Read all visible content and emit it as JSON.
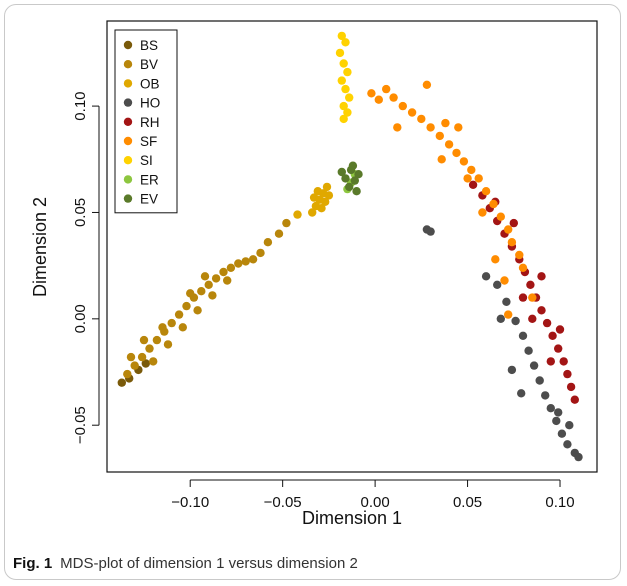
{
  "chart_data": {
    "type": "scatter",
    "xlabel": "Dimension 1",
    "ylabel": "Dimension 2",
    "xlim": [
      -0.145,
      0.12
    ],
    "ylim": [
      -0.072,
      0.14
    ],
    "xticks": [
      -0.1,
      -0.05,
      0.0,
      0.05,
      0.1
    ],
    "xtick_labels": [
      "−0.10",
      "−0.05",
      "0.00",
      "0.05",
      "0.10"
    ],
    "yticks": [
      -0.05,
      0.0,
      0.05,
      0.1
    ],
    "ytick_labels": [
      "−0.05",
      "0.00",
      "0.05",
      "0.10"
    ],
    "grid": false,
    "legend_position": "top-left",
    "series": [
      {
        "name": "BS",
        "color": "#7a5a0a",
        "points": [
          [
            -0.137,
            -0.03
          ],
          [
            -0.133,
            -0.028
          ],
          [
            -0.128,
            -0.024
          ],
          [
            -0.124,
            -0.021
          ]
        ]
      },
      {
        "name": "BV",
        "color": "#b8860b",
        "points": [
          [
            -0.134,
            -0.026
          ],
          [
            -0.13,
            -0.022
          ],
          [
            -0.126,
            -0.018
          ],
          [
            -0.122,
            -0.014
          ],
          [
            -0.118,
            -0.01
          ],
          [
            -0.114,
            -0.006
          ],
          [
            -0.11,
            -0.002
          ],
          [
            -0.106,
            0.002
          ],
          [
            -0.102,
            0.006
          ],
          [
            -0.098,
            0.01
          ],
          [
            -0.094,
            0.013
          ],
          [
            -0.09,
            0.016
          ],
          [
            -0.086,
            0.019
          ],
          [
            -0.082,
            0.022
          ],
          [
            -0.078,
            0.024
          ],
          [
            -0.074,
            0.026
          ],
          [
            -0.07,
            0.027
          ],
          [
            -0.066,
            0.028
          ],
          [
            -0.062,
            0.031
          ],
          [
            -0.058,
            0.036
          ],
          [
            -0.052,
            0.04
          ],
          [
            -0.048,
            0.045
          ],
          [
            -0.12,
            -0.02
          ],
          [
            -0.112,
            -0.012
          ],
          [
            -0.104,
            -0.004
          ],
          [
            -0.096,
            0.004
          ],
          [
            -0.088,
            0.011
          ],
          [
            -0.08,
            0.018
          ],
          [
            -0.125,
            -0.01
          ],
          [
            -0.115,
            -0.004
          ],
          [
            -0.1,
            0.012
          ],
          [
            -0.092,
            0.02
          ],
          [
            -0.132,
            -0.018
          ]
        ]
      },
      {
        "name": "OB",
        "color": "#e0a800",
        "points": [
          [
            -0.034,
            0.05
          ],
          [
            -0.032,
            0.053
          ],
          [
            -0.03,
            0.056
          ],
          [
            -0.028,
            0.059
          ],
          [
            -0.026,
            0.062
          ],
          [
            -0.033,
            0.057
          ],
          [
            -0.029,
            0.052
          ],
          [
            -0.025,
            0.058
          ],
          [
            -0.031,
            0.06
          ],
          [
            -0.027,
            0.055
          ],
          [
            -0.042,
            0.049
          ]
        ]
      },
      {
        "name": "HO",
        "color": "#4d4d4d",
        "points": [
          [
            0.028,
            0.042
          ],
          [
            0.03,
            0.041
          ],
          [
            0.06,
            0.02
          ],
          [
            0.066,
            0.016
          ],
          [
            0.071,
            0.008
          ],
          [
            0.076,
            -0.001
          ],
          [
            0.08,
            -0.008
          ],
          [
            0.083,
            -0.015
          ],
          [
            0.086,
            -0.022
          ],
          [
            0.089,
            -0.029
          ],
          [
            0.092,
            -0.036
          ],
          [
            0.095,
            -0.042
          ],
          [
            0.098,
            -0.048
          ],
          [
            0.101,
            -0.054
          ],
          [
            0.104,
            -0.059
          ],
          [
            0.108,
            -0.063
          ],
          [
            0.11,
            -0.065
          ],
          [
            0.074,
            -0.024
          ],
          [
            0.079,
            -0.035
          ],
          [
            0.068,
            0.0
          ],
          [
            0.105,
            -0.05
          ],
          [
            0.099,
            -0.044
          ]
        ]
      },
      {
        "name": "RH",
        "color": "#a31515",
        "points": [
          [
            0.053,
            0.063
          ],
          [
            0.058,
            0.058
          ],
          [
            0.062,
            0.052
          ],
          [
            0.066,
            0.046
          ],
          [
            0.07,
            0.04
          ],
          [
            0.074,
            0.034
          ],
          [
            0.078,
            0.028
          ],
          [
            0.081,
            0.022
          ],
          [
            0.084,
            0.016
          ],
          [
            0.087,
            0.01
          ],
          [
            0.09,
            0.004
          ],
          [
            0.093,
            -0.002
          ],
          [
            0.096,
            -0.008
          ],
          [
            0.099,
            -0.014
          ],
          [
            0.102,
            -0.02
          ],
          [
            0.104,
            -0.026
          ],
          [
            0.106,
            -0.032
          ],
          [
            0.108,
            -0.038
          ],
          [
            0.085,
            0.0
          ],
          [
            0.08,
            0.01
          ],
          [
            0.095,
            -0.02
          ],
          [
            0.1,
            -0.005
          ],
          [
            0.09,
            0.02
          ],
          [
            0.075,
            0.045
          ],
          [
            0.065,
            0.055
          ]
        ]
      },
      {
        "name": "SF",
        "color": "#ff8c00",
        "points": [
          [
            -0.002,
            0.106
          ],
          [
            0.002,
            0.103
          ],
          [
            0.006,
            0.108
          ],
          [
            0.01,
            0.104
          ],
          [
            0.015,
            0.1
          ],
          [
            0.02,
            0.097
          ],
          [
            0.025,
            0.094
          ],
          [
            0.03,
            0.09
          ],
          [
            0.035,
            0.086
          ],
          [
            0.04,
            0.082
          ],
          [
            0.044,
            0.078
          ],
          [
            0.048,
            0.074
          ],
          [
            0.052,
            0.07
          ],
          [
            0.056,
            0.066
          ],
          [
            0.06,
            0.06
          ],
          [
            0.064,
            0.054
          ],
          [
            0.068,
            0.048
          ],
          [
            0.072,
            0.042
          ],
          [
            0.074,
            0.036
          ],
          [
            0.078,
            0.03
          ],
          [
            0.08,
            0.024
          ],
          [
            0.085,
            0.01
          ],
          [
            0.012,
            0.09
          ],
          [
            0.036,
            0.075
          ],
          [
            0.05,
            0.066
          ],
          [
            0.045,
            0.09
          ],
          [
            0.038,
            0.092
          ],
          [
            0.058,
            0.05
          ],
          [
            0.065,
            0.028
          ],
          [
            0.07,
            0.018
          ],
          [
            0.072,
            0.002
          ],
          [
            0.028,
            0.11
          ]
        ]
      },
      {
        "name": "SI",
        "color": "#ffd200",
        "points": [
          [
            -0.018,
            0.133
          ],
          [
            -0.016,
            0.13
          ],
          [
            -0.019,
            0.125
          ],
          [
            -0.017,
            0.12
          ],
          [
            -0.015,
            0.116
          ],
          [
            -0.018,
            0.112
          ],
          [
            -0.016,
            0.108
          ],
          [
            -0.014,
            0.104
          ],
          [
            -0.017,
            0.1
          ],
          [
            -0.015,
            0.097
          ],
          [
            -0.017,
            0.094
          ]
        ]
      },
      {
        "name": "ER",
        "color": "#8dc63f",
        "points": [
          [
            -0.013,
            0.064
          ],
          [
            -0.011,
            0.068
          ],
          [
            -0.015,
            0.061
          ]
        ]
      },
      {
        "name": "EV",
        "color": "#5a7a2a",
        "points": [
          [
            -0.016,
            0.066
          ],
          [
            -0.013,
            0.07
          ],
          [
            -0.011,
            0.065
          ],
          [
            -0.009,
            0.068
          ],
          [
            -0.014,
            0.062
          ],
          [
            -0.01,
            0.06
          ],
          [
            -0.018,
            0.069
          ],
          [
            -0.012,
            0.072
          ]
        ]
      }
    ]
  },
  "caption": {
    "label": "Fig. 1",
    "text": "MDS-plot of dimension 1 versus dimension 2"
  }
}
